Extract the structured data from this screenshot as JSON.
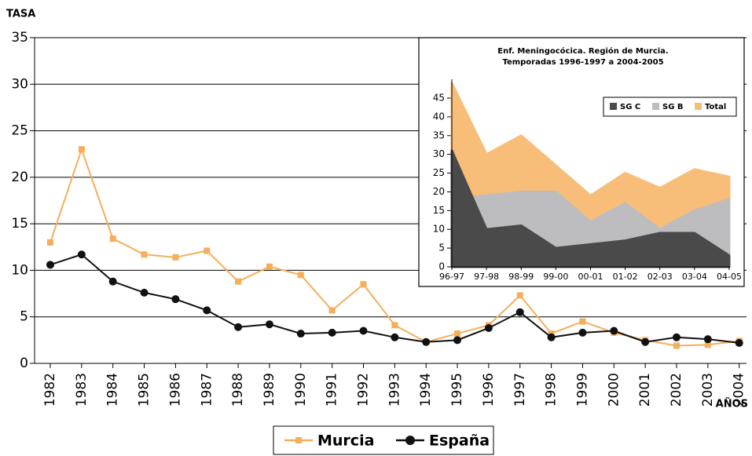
{
  "chart_data": [
    {
      "type": "line",
      "ylabel": "TASA",
      "xlabel": "AÑOS",
      "categories": [
        "1982",
        "1983",
        "1984",
        "1985",
        "1986",
        "1987",
        "1988",
        "1989",
        "1990",
        "1991",
        "1992",
        "1993",
        "1994",
        "1995",
        "1996",
        "1997",
        "1998",
        "1999",
        "2000",
        "2001",
        "2002",
        "2003",
        "2004"
      ],
      "series": [
        {
          "name": "Murcia",
          "color": "#f5ae5a",
          "marker": "square",
          "values": [
            13,
            23,
            13.4,
            11.7,
            11.4,
            12.1,
            8.8,
            10.4,
            9.5,
            5.7,
            8.5,
            4.1,
            2.3,
            3.2,
            4.1,
            7.3,
            3.2,
            4.5,
            3.3,
            2.5,
            1.9,
            2.0,
            2.4
          ]
        },
        {
          "name": "España",
          "color": "#111111",
          "marker": "circle",
          "values": [
            10.6,
            11.7,
            8.8,
            7.6,
            6.9,
            5.7,
            3.9,
            4.2,
            3.2,
            3.3,
            3.5,
            2.8,
            2.3,
            2.5,
            3.8,
            5.5,
            2.8,
            3.3,
            3.5,
            2.3,
            2.8,
            2.6,
            2.2
          ]
        }
      ],
      "ylim": [
        0,
        35
      ],
      "yticks": [
        0,
        5,
        10,
        15,
        20,
        25,
        30,
        35
      ],
      "grid": true,
      "legend": "bottom"
    },
    {
      "type": "area",
      "title": "Enf. Meningocócica. Región de Murcia.",
      "subtitle": "Temporadas 1996-1997 a 2004-2005",
      "categories": [
        "96-97",
        "97-98",
        "98-99",
        "99-00",
        "00-01",
        "01-02",
        "02-03",
        "03-04",
        "04-05"
      ],
      "series": [
        {
          "name": "SG C",
          "color": "#4a4a4a",
          "values": [
            31,
            10,
            11,
            5,
            6,
            7,
            9,
            9,
            3
          ]
        },
        {
          "name": "SG B",
          "color": "#bdbdbf",
          "values": [
            18,
            19,
            20,
            20,
            12,
            17,
            10,
            15,
            18
          ]
        },
        {
          "name": "Total",
          "color": "#f8bd78",
          "values": [
            49,
            30,
            35,
            27,
            19,
            25,
            21,
            26,
            24
          ]
        }
      ],
      "ylim": [
        0,
        50
      ],
      "yticks": [
        0,
        5,
        10,
        15,
        20,
        25,
        30,
        35,
        40,
        45
      ],
      "legend": "upper right"
    }
  ]
}
